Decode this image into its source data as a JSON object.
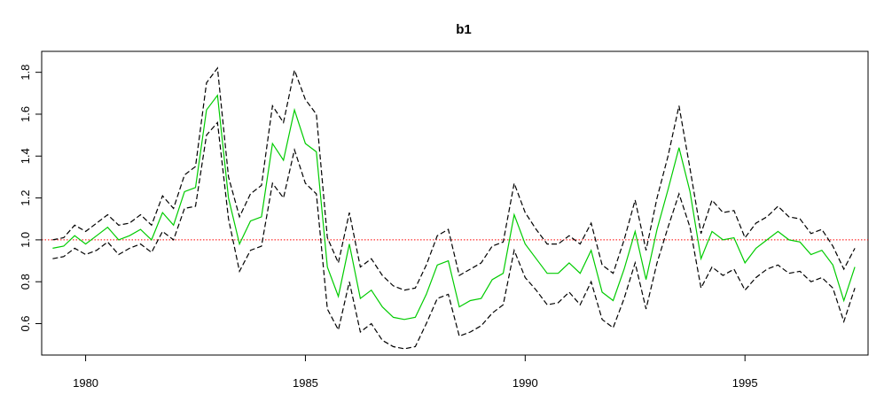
{
  "chart_data": {
    "type": "line",
    "title": "b1",
    "xlabel": "",
    "ylabel": "",
    "xlim": [
      1979,
      1997.8
    ],
    "ylim": [
      0.45,
      1.9
    ],
    "xticks": [
      1980,
      1985,
      1990,
      1995
    ],
    "xtick_labels": [
      "1980",
      "1985",
      "1990",
      "1995"
    ],
    "yticks": [
      0.6,
      0.8,
      1.0,
      1.2,
      1.4,
      1.6,
      1.8
    ],
    "ytick_labels": [
      "0.6",
      "0.8",
      "1.0",
      "1.2",
      "1.4",
      "1.6",
      "1.8"
    ],
    "reference_line": {
      "y": 1.0,
      "color": "#ff0000",
      "style": "dotted"
    },
    "grid": false,
    "x": [
      1979.25,
      1979.5,
      1979.75,
      1980.0,
      1980.25,
      1980.5,
      1980.75,
      1981.0,
      1981.25,
      1981.5,
      1981.75,
      1982.0,
      1982.25,
      1982.5,
      1982.75,
      1983.0,
      1983.25,
      1983.5,
      1983.75,
      1984.0,
      1984.25,
      1984.5,
      1984.75,
      1985.0,
      1985.25,
      1985.5,
      1985.75,
      1986.0,
      1986.25,
      1986.5,
      1986.75,
      1987.0,
      1987.25,
      1987.5,
      1987.75,
      1988.0,
      1988.25,
      1988.5,
      1988.75,
      1989.0,
      1989.25,
      1989.5,
      1989.75,
      1990.0,
      1990.25,
      1990.5,
      1990.75,
      1991.0,
      1991.25,
      1991.5,
      1991.75,
      1992.0,
      1992.25,
      1992.5,
      1992.75,
      1993.0,
      1993.25,
      1993.5,
      1993.75,
      1994.0,
      1994.25,
      1994.5,
      1994.75,
      1995.0,
      1995.25,
      1995.5,
      1995.75,
      1996.0,
      1996.25,
      1996.5,
      1996.75,
      1997.0,
      1997.25,
      1997.5
    ],
    "series": [
      {
        "color": "#00cc00",
        "style": "solid",
        "values": [
          0.96,
          0.97,
          1.02,
          0.98,
          1.02,
          1.06,
          1.0,
          1.02,
          1.05,
          1.0,
          1.13,
          1.07,
          1.23,
          1.25,
          1.62,
          1.69,
          1.2,
          0.98,
          1.09,
          1.11,
          1.46,
          1.38,
          1.62,
          1.46,
          1.42,
          0.87,
          0.73,
          0.98,
          0.72,
          0.76,
          0.68,
          0.63,
          0.62,
          0.63,
          0.74,
          0.88,
          0.9,
          0.68,
          0.71,
          0.72,
          0.81,
          0.84,
          1.12,
          0.98,
          0.91,
          0.84,
          0.84,
          0.89,
          0.84,
          0.95,
          0.75,
          0.71,
          0.86,
          1.04,
          0.81,
          1.05,
          1.24,
          1.44,
          1.23,
          0.91,
          1.04,
          1.0,
          1.01,
          0.89,
          0.96,
          1.0,
          1.04,
          1.0,
          0.99,
          0.93,
          0.95,
          0.88,
          0.71,
          0.87
        ]
      },
      {
        "color": "#000000",
        "style": "dashed",
        "values": [
          1.0,
          1.01,
          1.07,
          1.04,
          1.08,
          1.12,
          1.07,
          1.08,
          1.12,
          1.07,
          1.21,
          1.15,
          1.31,
          1.35,
          1.75,
          1.82,
          1.3,
          1.11,
          1.22,
          1.26,
          1.64,
          1.56,
          1.81,
          1.67,
          1.6,
          1.01,
          0.89,
          1.13,
          0.87,
          0.91,
          0.83,
          0.78,
          0.76,
          0.77,
          0.88,
          1.02,
          1.05,
          0.83,
          0.86,
          0.89,
          0.97,
          0.99,
          1.27,
          1.13,
          1.05,
          0.98,
          0.98,
          1.02,
          0.98,
          1.08,
          0.88,
          0.84,
          1.0,
          1.19,
          0.95,
          1.2,
          1.4,
          1.64,
          1.34,
          1.03,
          1.19,
          1.13,
          1.14,
          1.01,
          1.08,
          1.11,
          1.16,
          1.11,
          1.1,
          1.03,
          1.05,
          0.97,
          0.86,
          0.96
        ]
      },
      {
        "color": "#000000",
        "style": "dashed",
        "values": [
          0.91,
          0.92,
          0.96,
          0.93,
          0.95,
          0.99,
          0.93,
          0.96,
          0.98,
          0.94,
          1.04,
          1.0,
          1.15,
          1.16,
          1.5,
          1.56,
          1.1,
          0.85,
          0.95,
          0.97,
          1.27,
          1.2,
          1.43,
          1.27,
          1.22,
          0.67,
          0.57,
          0.8,
          0.56,
          0.6,
          0.52,
          0.49,
          0.48,
          0.49,
          0.6,
          0.72,
          0.74,
          0.54,
          0.56,
          0.59,
          0.65,
          0.69,
          0.95,
          0.82,
          0.76,
          0.69,
          0.7,
          0.75,
          0.69,
          0.8,
          0.62,
          0.58,
          0.72,
          0.89,
          0.67,
          0.89,
          1.06,
          1.22,
          1.06,
          0.77,
          0.87,
          0.83,
          0.86,
          0.76,
          0.82,
          0.86,
          0.88,
          0.84,
          0.85,
          0.8,
          0.82,
          0.77,
          0.61,
          0.77
        ]
      }
    ]
  }
}
